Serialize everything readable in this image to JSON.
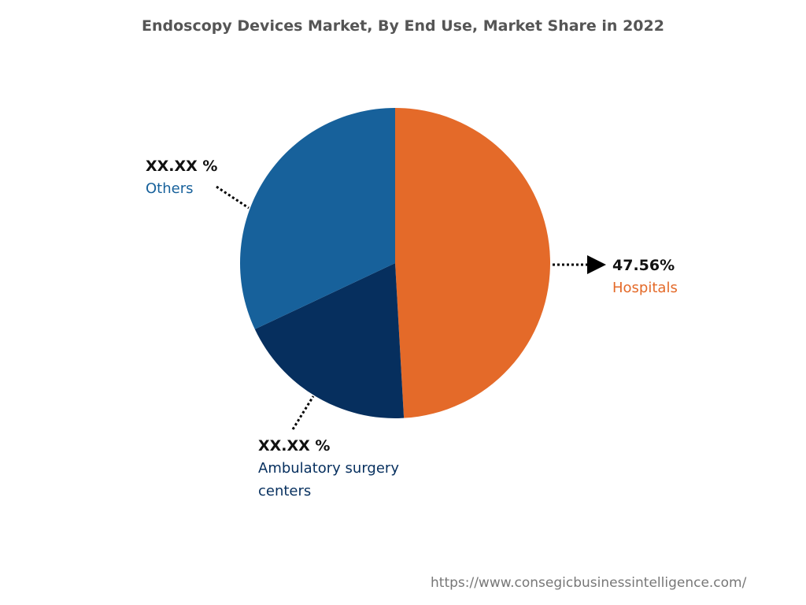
{
  "chart_data": {
    "type": "pie",
    "title": "Endoscopy Devices Market, By End Use, Market Share in 2022",
    "categories": [
      "Hospitals",
      "Ambulatory surgery centers",
      "Others"
    ],
    "values": [
      47.56,
      18.3,
      31.0
    ],
    "value_labels": [
      "47.56%",
      "XX.XX %",
      "XX.XX %"
    ],
    "colors": [
      "#e46a29",
      "#062f5e",
      "#17619b"
    ]
  },
  "source": "https://www.consegicbusinessintelligence.com/"
}
